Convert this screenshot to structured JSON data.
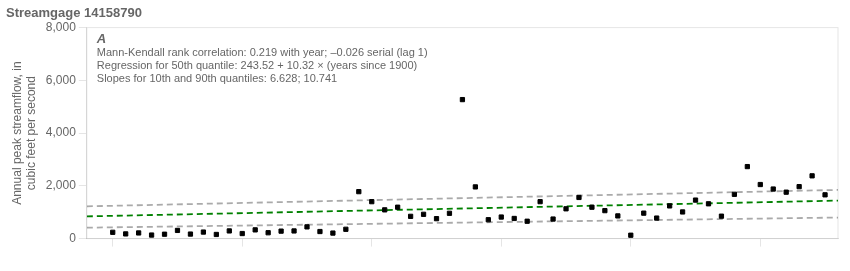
{
  "chart_data": {
    "type": "scatter",
    "title": "Streamgage 14158790",
    "ylabel": "Annual peak streamflow, in\ncubic feet per second",
    "annotations": [
      "A",
      "Mann-Kendall rank correlation: 0.219 with year; –0.026 serial (lag 1)",
      "Regression for 50th quantile: 243.52 + 10.32 × (years since 1900)",
      "Slopes for 10th and 90th quantiles: 6.628; 10.741"
    ],
    "xlim": [
      1958,
      2016
    ],
    "xticks": [
      1960,
      1970,
      1980,
      1990,
      2000,
      2010
    ],
    "ylim": [
      0,
      8000
    ],
    "yticks": [
      0,
      {
        "value": 2000,
        "label": "2,000"
      },
      {
        "value": 4000,
        "label": "4,000"
      },
      {
        "value": 6000,
        "label": "6,000"
      },
      {
        "value": 8000,
        "label": "8,000"
      }
    ],
    "tick_labels": "y",
    "grid": false,
    "series": [
      {
        "type": "scatter",
        "color": "#000000",
        "marker": "square",
        "x": [
          1960,
          1961,
          1962,
          1963,
          1964,
          1965,
          1966,
          1967,
          1968,
          1969,
          1970,
          1971,
          1972,
          1973,
          1974,
          1975,
          1976,
          1977,
          1978,
          1979,
          1980,
          1981,
          1982,
          1983,
          1984,
          1985,
          1986,
          1987,
          1988,
          1989,
          1990,
          1991,
          1992,
          1993,
          1994,
          1995,
          1996,
          1997,
          1998,
          1999,
          2000,
          2001,
          2002,
          2003,
          2004,
          2005,
          2006,
          2007,
          2008,
          2009,
          2010,
          2011,
          2012,
          2013,
          2014,
          2015
        ],
        "values": [
          239,
          178,
          214,
          135,
          166,
          310,
          172,
          248,
          157,
          291,
          192,
          331,
          222,
          283,
          290,
          445,
          268,
          210,
          354,
          1780,
          1400,
          1090,
          1190,
          844,
          921,
          756,
          960,
          5270,
          1960,
          715,
          818,
          764,
          658,
          1400,
          742,
          1130,
          1560,
          1190,
          1060,
          860,
          128,
          965,
          778,
          1240,
          1010,
          1460,
          1320,
          850,
          1680,
          2730,
          2050,
          1880,
          1760,
          1970,
          2380,
          1660
        ]
      },
      {
        "type": "line",
        "color": "#008000",
        "line_style": "dashed",
        "x": [
          1958,
          2016
        ],
        "values": [
          842.08,
          1440.64
        ]
      },
      {
        "type": "line",
        "color": "#aaaaaa",
        "line_style": "dashed",
        "x": [
          1958,
          2016
        ],
        "values": [
          414.424,
          798.848
        ]
      },
      {
        "type": "line",
        "color": "#aaaaaa",
        "line_style": "dashed",
        "x": [
          1958,
          2016
        ],
        "values": [
          1222.978,
          1845.956
        ]
      }
    ]
  }
}
